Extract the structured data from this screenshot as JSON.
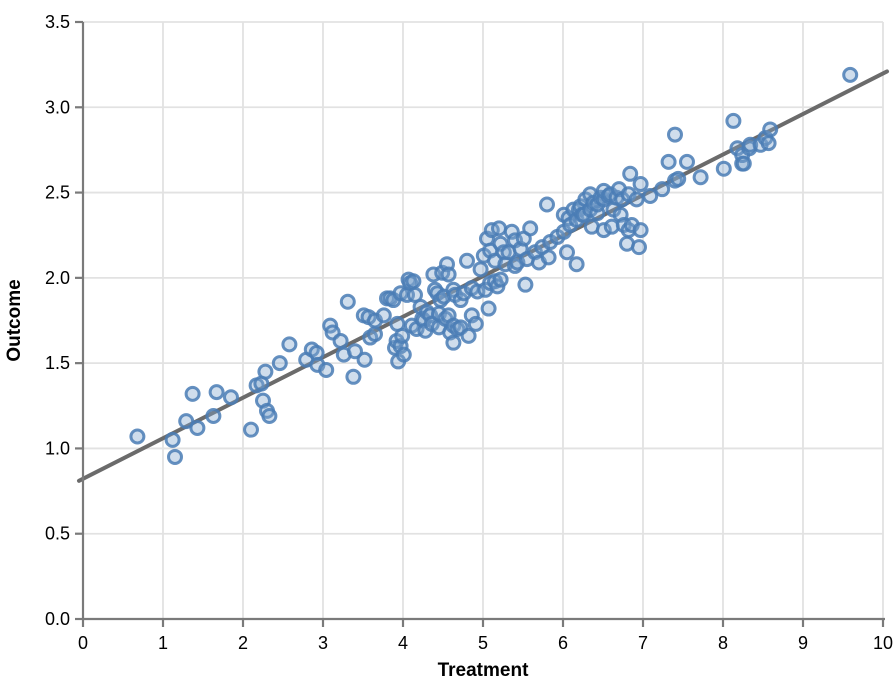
{
  "chart_data": {
    "type": "scatter",
    "title": "",
    "xlabel": "Treatment",
    "ylabel": "Outcome",
    "xlim": [
      0,
      10
    ],
    "ylim": [
      0,
      3.5
    ],
    "xticks": [
      0,
      1,
      2,
      3,
      4,
      5,
      6,
      7,
      8,
      9,
      10
    ],
    "ytick_labels": [
      "0.0",
      "0.5",
      "1.0",
      "1.5",
      "2.0",
      "2.5",
      "3.0",
      "3.5"
    ],
    "yticks": [
      0,
      0.5,
      1.0,
      1.5,
      2.0,
      2.5,
      3.0,
      3.5
    ],
    "grid": true,
    "legend": "none",
    "colors": {
      "grid": "#e2e2e2",
      "spine": "#7a7a7a",
      "tick": "#7a7a7a",
      "regression_line": "#6b6b6b",
      "point_stroke": "#4a7cb5",
      "point_fill": "rgba(130,165,205,0.38)"
    },
    "regression_line": {
      "x0": -0.05,
      "y0": 0.81,
      "x1": 10.05,
      "y1": 3.21,
      "slope": 0.238,
      "intercept": 0.82
    },
    "points": [
      [
        0.68,
        1.07
      ],
      [
        1.12,
        1.05
      ],
      [
        1.15,
        0.95
      ],
      [
        1.29,
        1.16
      ],
      [
        1.37,
        1.32
      ],
      [
        1.43,
        1.12
      ],
      [
        1.63,
        1.19
      ],
      [
        1.67,
        1.33
      ],
      [
        1.85,
        1.3
      ],
      [
        2.1,
        1.11
      ],
      [
        2.17,
        1.37
      ],
      [
        2.23,
        1.38
      ],
      [
        2.25,
        1.28
      ],
      [
        2.28,
        1.45
      ],
      [
        2.3,
        1.22
      ],
      [
        2.33,
        1.19
      ],
      [
        2.46,
        1.5
      ],
      [
        2.58,
        1.61
      ],
      [
        2.79,
        1.52
      ],
      [
        2.86,
        1.58
      ],
      [
        2.92,
        1.56
      ],
      [
        2.93,
        1.49
      ],
      [
        3.04,
        1.46
      ],
      [
        3.09,
        1.72
      ],
      [
        3.12,
        1.68
      ],
      [
        3.22,
        1.63
      ],
      [
        3.26,
        1.55
      ],
      [
        3.31,
        1.86
      ],
      [
        3.38,
        1.42
      ],
      [
        3.4,
        1.57
      ],
      [
        3.52,
        1.52
      ],
      [
        3.51,
        1.78
      ],
      [
        3.57,
        1.77
      ],
      [
        3.59,
        1.65
      ],
      [
        3.65,
        1.67
      ],
      [
        3.65,
        1.75
      ],
      [
        3.76,
        1.78
      ],
      [
        3.8,
        1.88
      ],
      [
        3.84,
        1.88
      ],
      [
        3.88,
        1.87
      ],
      [
        3.9,
        1.59
      ],
      [
        3.92,
        1.63
      ],
      [
        3.93,
        1.73
      ],
      [
        3.94,
        1.51
      ],
      [
        3.97,
        1.6
      ],
      [
        3.97,
        1.91
      ],
      [
        3.99,
        1.66
      ],
      [
        4.01,
        1.55
      ],
      [
        4.05,
        1.9
      ],
      [
        4.07,
        1.99
      ],
      [
        4.09,
        1.97
      ],
      [
        4.11,
        1.72
      ],
      [
        4.13,
        1.98
      ],
      [
        4.15,
        1.9
      ],
      [
        4.17,
        1.7
      ],
      [
        4.22,
        1.83
      ],
      [
        4.24,
        1.76
      ],
      [
        4.26,
        1.75
      ],
      [
        4.28,
        1.69
      ],
      [
        4.3,
        1.8
      ],
      [
        4.34,
        1.78
      ],
      [
        4.36,
        1.73
      ],
      [
        4.38,
        2.02
      ],
      [
        4.4,
        1.93
      ],
      [
        4.43,
        1.91
      ],
      [
        4.45,
        1.71
      ],
      [
        4.45,
        1.79
      ],
      [
        4.47,
        1.87
      ],
      [
        4.49,
        2.03
      ],
      [
        4.51,
        1.89
      ],
      [
        4.53,
        1.76
      ],
      [
        4.55,
        2.08
      ],
      [
        4.57,
        1.78
      ],
      [
        4.57,
        2.02
      ],
      [
        4.59,
        1.68
      ],
      [
        4.63,
        1.62
      ],
      [
        4.63,
        1.72
      ],
      [
        4.63,
        1.93
      ],
      [
        4.65,
        1.9
      ],
      [
        4.68,
        1.7
      ],
      [
        4.72,
        1.71
      ],
      [
        4.72,
        1.87
      ],
      [
        4.76,
        1.91
      ],
      [
        4.8,
        2.1
      ],
      [
        4.82,
        1.66
      ],
      [
        4.86,
        1.78
      ],
      [
        4.86,
        1.94
      ],
      [
        4.91,
        1.73
      ],
      [
        4.93,
        1.92
      ],
      [
        4.97,
        2.05
      ],
      [
        5.01,
        2.13
      ],
      [
        5.03,
        1.93
      ],
      [
        5.05,
        2.23
      ],
      [
        5.07,
        1.82
      ],
      [
        5.09,
        1.97
      ],
      [
        5.09,
        2.16
      ],
      [
        5.11,
        2.28
      ],
      [
        5.15,
        1.98
      ],
      [
        5.15,
        2.1
      ],
      [
        5.18,
        1.95
      ],
      [
        5.2,
        2.29
      ],
      [
        5.22,
        1.99
      ],
      [
        5.22,
        2.2
      ],
      [
        5.26,
        2.15
      ],
      [
        5.28,
        2.08
      ],
      [
        5.32,
        2.15
      ],
      [
        5.36,
        2.27
      ],
      [
        5.4,
        2.07
      ],
      [
        5.4,
        2.22
      ],
      [
        5.43,
        2.09
      ],
      [
        5.47,
        2.17
      ],
      [
        5.51,
        2.23
      ],
      [
        5.53,
        1.96
      ],
      [
        5.55,
        2.11
      ],
      [
        5.59,
        2.29
      ],
      [
        5.65,
        2.15
      ],
      [
        5.7,
        2.09
      ],
      [
        5.74,
        2.18
      ],
      [
        5.8,
        2.43
      ],
      [
        5.82,
        2.12
      ],
      [
        5.84,
        2.21
      ],
      [
        5.93,
        2.24
      ],
      [
        6.01,
        2.27
      ],
      [
        6.01,
        2.37
      ],
      [
        6.05,
        2.15
      ],
      [
        6.07,
        2.35
      ],
      [
        6.09,
        2.31
      ],
      [
        6.13,
        2.4
      ],
      [
        6.17,
        2.08
      ],
      [
        6.17,
        2.34
      ],
      [
        6.2,
        2.4
      ],
      [
        6.22,
        2.42
      ],
      [
        6.24,
        2.37
      ],
      [
        6.26,
        2.37
      ],
      [
        6.28,
        2.46
      ],
      [
        6.34,
        2.4
      ],
      [
        6.34,
        2.49
      ],
      [
        6.36,
        2.3
      ],
      [
        6.38,
        2.44
      ],
      [
        6.43,
        2.38
      ],
      [
        6.43,
        2.43
      ],
      [
        6.47,
        2.47
      ],
      [
        6.51,
        2.28
      ],
      [
        6.51,
        2.46
      ],
      [
        6.51,
        2.51
      ],
      [
        6.57,
        2.48
      ],
      [
        6.59,
        2.49
      ],
      [
        6.61,
        2.3
      ],
      [
        6.63,
        2.4
      ],
      [
        6.67,
        2.47
      ],
      [
        6.7,
        2.52
      ],
      [
        6.72,
        2.37
      ],
      [
        6.74,
        2.46
      ],
      [
        6.76,
        2.31
      ],
      [
        6.8,
        2.2
      ],
      [
        6.82,
        2.28
      ],
      [
        6.82,
        2.49
      ],
      [
        6.84,
        2.61
      ],
      [
        6.86,
        2.31
      ],
      [
        6.92,
        2.46
      ],
      [
        6.95,
        2.18
      ],
      [
        6.97,
        2.28
      ],
      [
        6.97,
        2.55
      ],
      [
        7.09,
        2.48
      ],
      [
        7.24,
        2.52
      ],
      [
        7.32,
        2.68
      ],
      [
        7.4,
        2.57
      ],
      [
        7.4,
        2.84
      ],
      [
        7.44,
        2.58
      ],
      [
        7.55,
        2.68
      ],
      [
        7.72,
        2.59
      ],
      [
        8.01,
        2.64
      ],
      [
        8.13,
        2.92
      ],
      [
        8.18,
        2.76
      ],
      [
        8.24,
        2.67
      ],
      [
        8.24,
        2.72
      ],
      [
        8.26,
        2.67
      ],
      [
        8.33,
        2.76
      ],
      [
        8.34,
        2.78
      ],
      [
        8.47,
        2.78
      ],
      [
        8.53,
        2.82
      ],
      [
        8.57,
        2.79
      ],
      [
        8.59,
        2.87
      ],
      [
        9.59,
        3.19
      ]
    ]
  }
}
